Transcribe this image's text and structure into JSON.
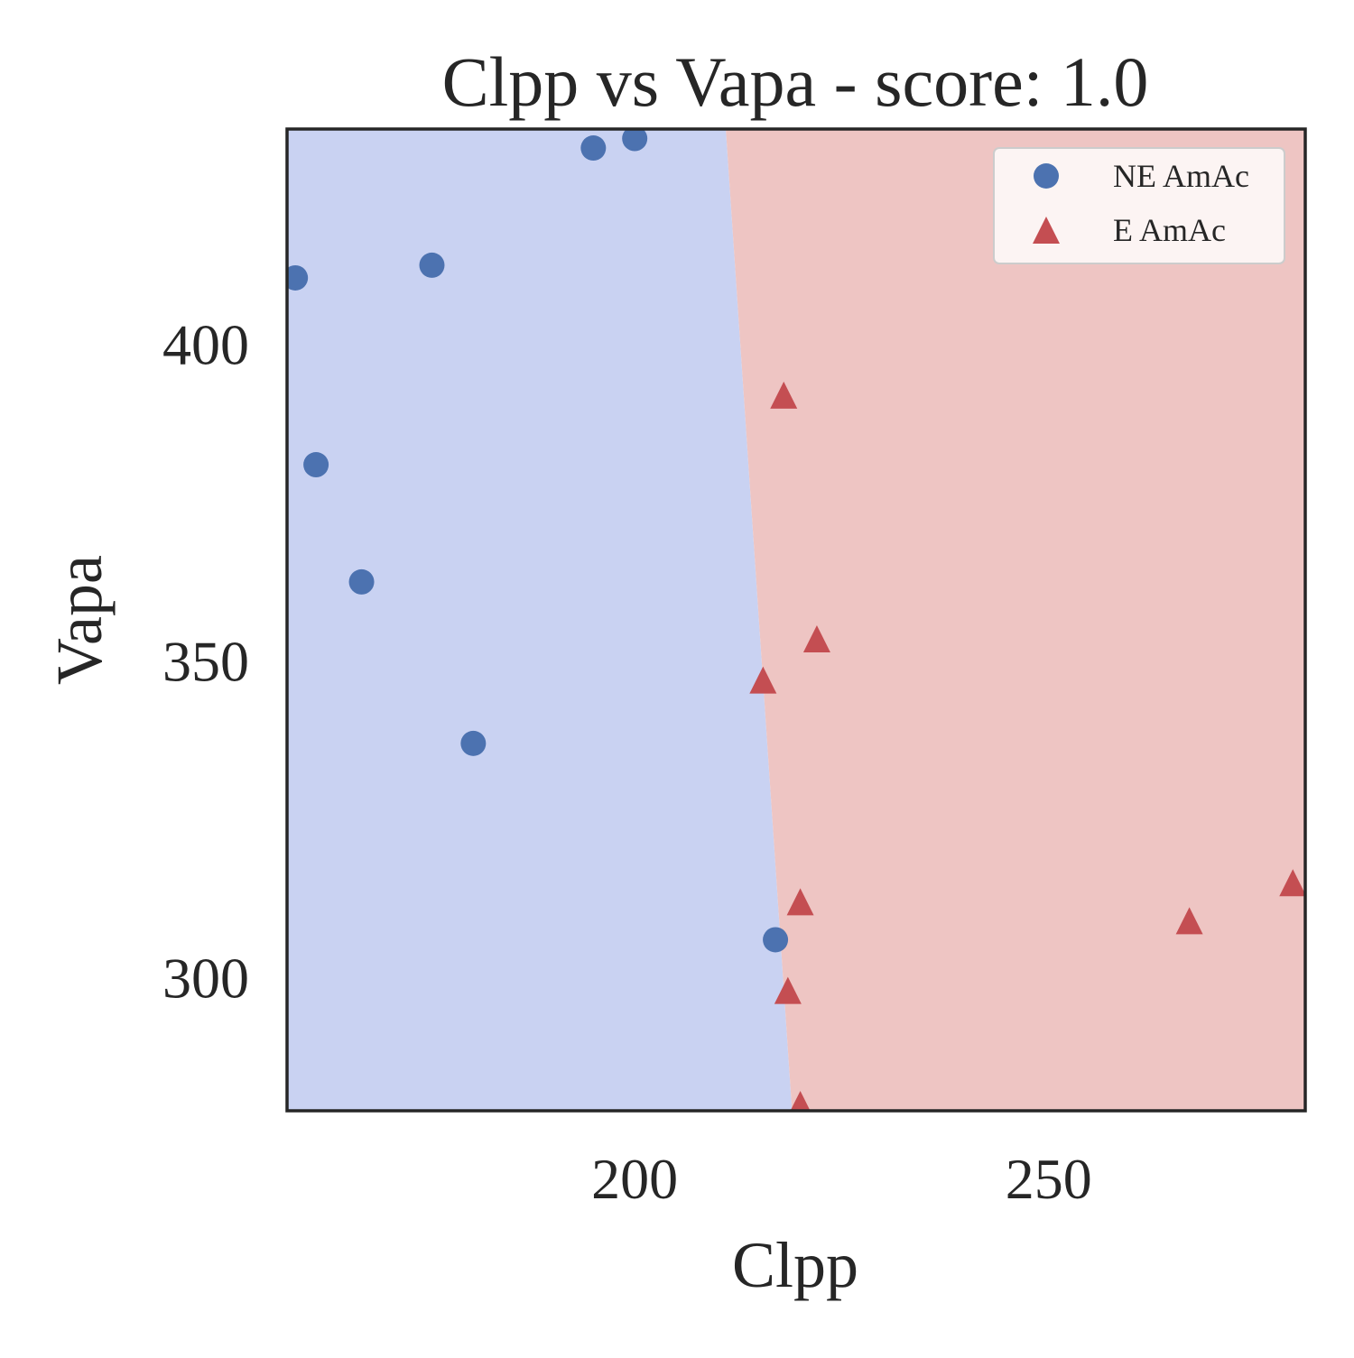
{
  "chart_data": {
    "type": "scatter",
    "title": "Clpp vs Vapa - score: 1.0",
    "xlabel": "Clpp",
    "ylabel": "Vapa",
    "xlim": [
      158,
      281
    ],
    "ylim": [
      279,
      434
    ],
    "xticks": [
      200,
      250
    ],
    "yticks": [
      300,
      350,
      400
    ],
    "grid": false,
    "legend_position": "top-right",
    "decision_boundary": {
      "points": [
        [
          211,
          434
        ],
        [
          219,
          279
        ]
      ],
      "left_region_color": "#c9d2f2",
      "right_region_color": "#eec5c3"
    },
    "series": [
      {
        "name": "NE AmAc",
        "marker": "circle",
        "color": "#4c72b0",
        "points": [
          [
            159,
            410.5
          ],
          [
            161.5,
            381
          ],
          [
            167,
            362.5
          ],
          [
            175.5,
            412.5
          ],
          [
            180.5,
            337
          ],
          [
            195,
            431
          ],
          [
            200,
            432.5
          ],
          [
            217,
            306
          ]
        ]
      },
      {
        "name": "E AmAc",
        "marker": "triangle",
        "color": "#c44e52",
        "points": [
          [
            218,
            392
          ],
          [
            222,
            353.5
          ],
          [
            215.5,
            347
          ],
          [
            220,
            312
          ],
          [
            218.5,
            298
          ],
          [
            220,
            280
          ],
          [
            267,
            309
          ],
          [
            279.5,
            315
          ]
        ]
      }
    ]
  }
}
